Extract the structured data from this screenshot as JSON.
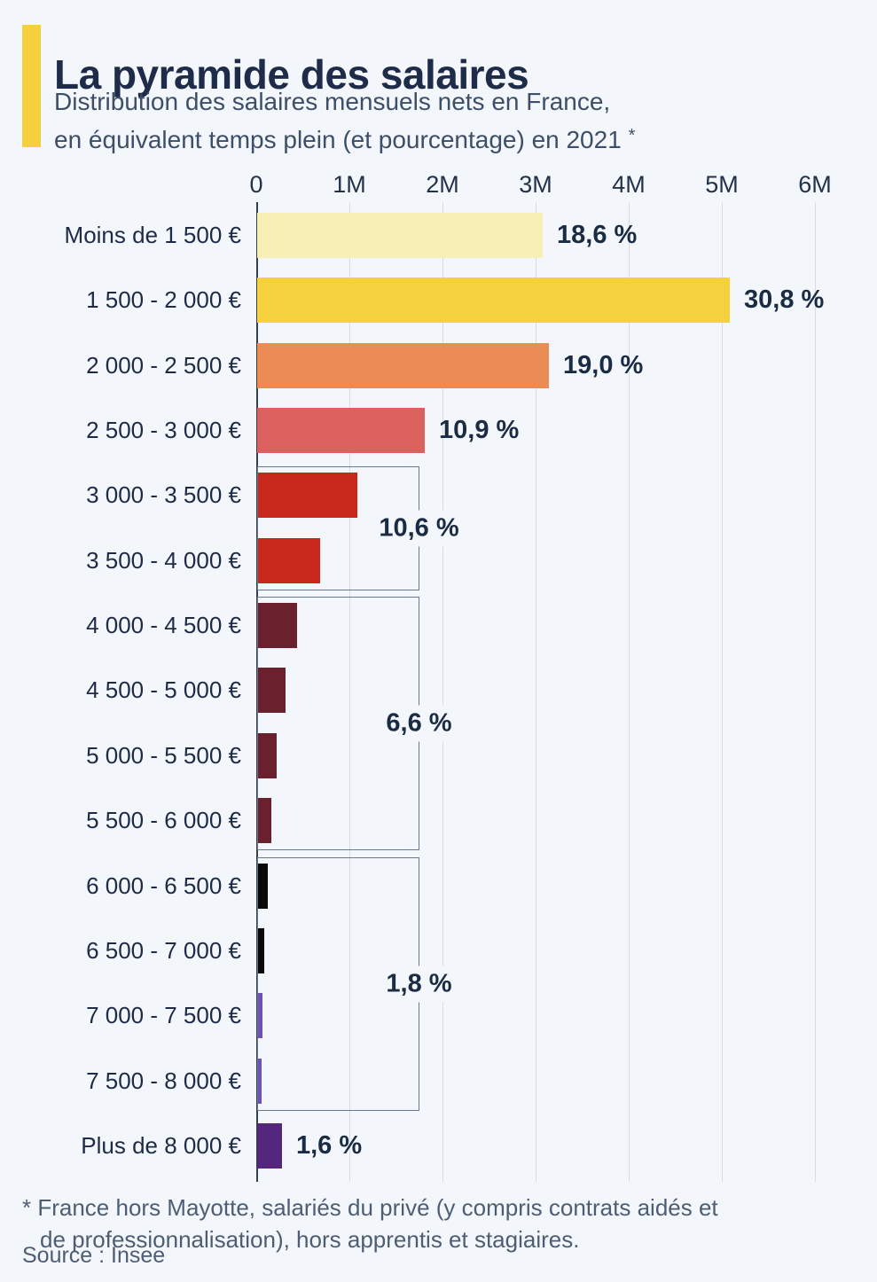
{
  "header": {
    "title": "La pyramide des salaires",
    "subtitle_line1": "Distribution des salaires mensuels nets en France,",
    "subtitle_line2": "en équivalent temps plein (et pourcentage) en 2021",
    "subtitle_asterisk": "*",
    "accent_color": "#f6cf3d"
  },
  "chart_data": {
    "type": "bar",
    "orientation": "horizontal",
    "title": "La pyramide des salaires",
    "x_axis": {
      "tick_labels": [
        "0",
        "1M",
        "2M",
        "3M",
        "4M",
        "5M",
        "6M"
      ],
      "tick_values_millions": [
        0,
        1,
        2,
        3,
        4,
        5,
        6
      ],
      "range_millions": [
        0,
        6
      ],
      "grid": true
    },
    "rows": [
      {
        "label": "Moins de 1 500 €",
        "value_millions": 3.07,
        "pct_label": "18,6 %",
        "color": "#f7efb6"
      },
      {
        "label": "1 500 - 2 000 €",
        "value_millions": 5.08,
        "pct_label": "30,8 %",
        "color": "#f5d13e"
      },
      {
        "label": "2 000 - 2 500 €",
        "value_millions": 3.13,
        "pct_label": "19,0 %",
        "color": "#ec8c55"
      },
      {
        "label": "2 500 - 3 000 €",
        "value_millions": 1.8,
        "pct_label": "10,9 %",
        "color": "#da615e"
      },
      {
        "label": "3 000 - 3 500 €",
        "value_millions": 1.08,
        "pct_label": null,
        "color": "#c9281c"
      },
      {
        "label": "3 500 - 4 000 €",
        "value_millions": 0.68,
        "pct_label": null,
        "color": "#c9281c"
      },
      {
        "label": "4 000 - 4 500 €",
        "value_millions": 0.43,
        "pct_label": null,
        "color": "#6b212d"
      },
      {
        "label": "4 500 - 5 000 €",
        "value_millions": 0.3,
        "pct_label": null,
        "color": "#6b212d"
      },
      {
        "label": "5 000 - 5 500 €",
        "value_millions": 0.21,
        "pct_label": null,
        "color": "#6b212d"
      },
      {
        "label": "5 500 - 6 000 €",
        "value_millions": 0.15,
        "pct_label": null,
        "color": "#6b212d"
      },
      {
        "label": "6 000 - 6 500 €",
        "value_millions": 0.11,
        "pct_label": null,
        "color": "#0a0a0a"
      },
      {
        "label": "6 500 - 7 000 €",
        "value_millions": 0.08,
        "pct_label": null,
        "color": "#0a0a0a"
      },
      {
        "label": "7 000 - 7 500 €",
        "value_millions": 0.06,
        "pct_label": null,
        "color": "#6e51bb"
      },
      {
        "label": "7 500 - 8 000 €",
        "value_millions": 0.05,
        "pct_label": null,
        "color": "#6e51bb"
      },
      {
        "label": "Plus de 8 000 €",
        "value_millions": 0.27,
        "pct_label": "1,6 %",
        "color": "#54267e"
      }
    ],
    "groups": [
      {
        "pct_label": "10,6 %",
        "from_row": 4,
        "to_row": 5
      },
      {
        "pct_label": "6,6 %",
        "from_row": 6,
        "to_row": 9
      },
      {
        "pct_label": "1,8 %",
        "from_row": 10,
        "to_row": 13
      }
    ],
    "legend": null
  },
  "footnote": {
    "line1": "* France hors Mayotte, salariés du privé (y compris contrats aidés et",
    "line2": "de professionnalisation), hors apprentis et stagiaires."
  },
  "source": "Source : Insee",
  "colors": {
    "background": "#f3f6fa",
    "title_text": "#1e2c49",
    "subtitle_text": "#3d4f68",
    "axis_text": "#223349",
    "gridline": "#d8dde4",
    "axis_line": "#343f4d",
    "bracket_line": "#6b7a8a",
    "footnote_text": "#4d5e74"
  }
}
